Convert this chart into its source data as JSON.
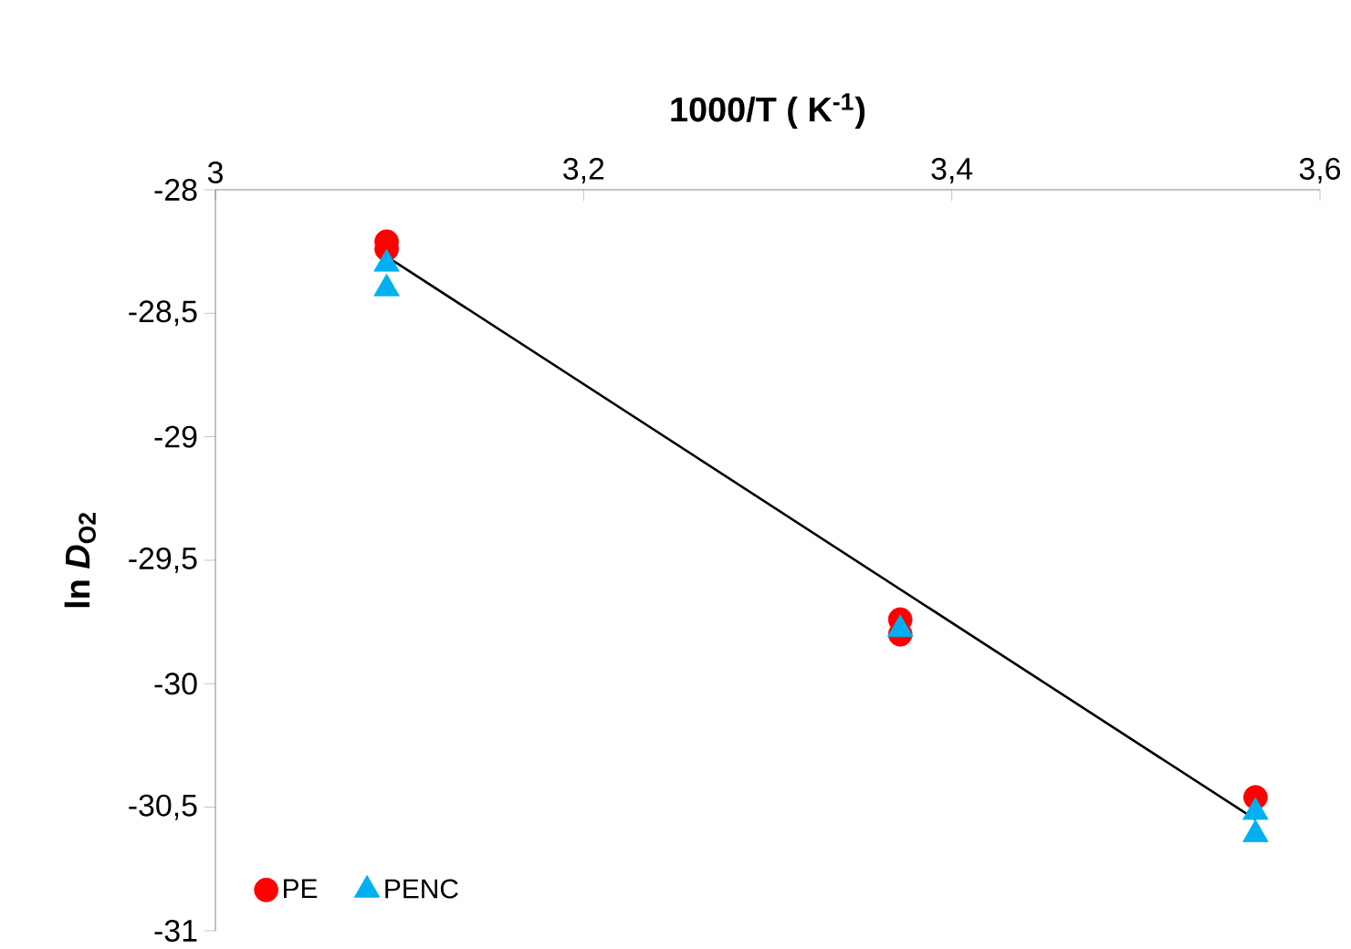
{
  "chart_data": {
    "type": "scatter",
    "xlabel": "1000/T ( K$^{-1}$)",
    "ylabel": "ln *D*$_{O2}$",
    "xlim": [
      3,
      3.6
    ],
    "xticks": [
      3,
      {
        "value": 3.2,
        "label": "3,2"
      },
      {
        "value": 3.4,
        "label": "3,4"
      },
      {
        "value": 3.6,
        "label": "3,6"
      }
    ],
    "ylim": [
      -31,
      -28
    ],
    "yticks": [
      -31,
      {
        "value": -30.5,
        "label": "-30,5"
      },
      -30,
      {
        "value": -29.5,
        "label": "-29,5"
      },
      -29,
      {
        "value": -28.5,
        "label": "-28,5"
      },
      -28
    ],
    "legend": "bottom left",
    "grid": false,
    "series": [
      {
        "name": "PE",
        "color": "#ff0000",
        "marker": "circle",
        "x": [
          3.093,
          3.093,
          3.372,
          3.372,
          3.565
        ],
        "values": [
          -28.21,
          -28.24,
          -29.74,
          -29.8,
          -30.46
        ]
      },
      {
        "name": "PENC",
        "color": "#00b0f0",
        "marker": "triangle",
        "x": [
          3.093,
          3.093,
          3.372,
          3.565,
          3.565
        ],
        "values": [
          -28.3,
          -28.4,
          -29.78,
          -30.52,
          -30.61
        ]
      },
      {
        "type": "line",
        "color": "#000000",
        "marker": "none",
        "x": [
          3.093,
          3.565
        ],
        "values": [
          -28.27,
          -30.55
        ]
      }
    ]
  }
}
